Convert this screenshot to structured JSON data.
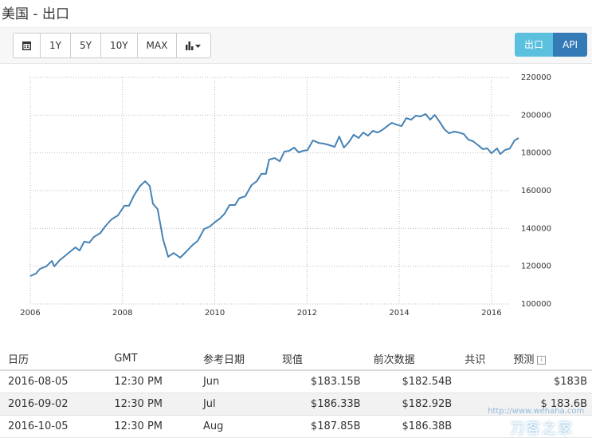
{
  "title": "美国 - 出口",
  "toolbar": {
    "buttons": [
      "1Y",
      "5Y",
      "10Y",
      "MAX"
    ],
    "tabs": [
      "出口",
      "API"
    ]
  },
  "chart_data": {
    "type": "line",
    "color": "#4682b4",
    "x": [
      2006.0,
      2006.12,
      2006.21,
      2006.35,
      2006.47,
      2006.52,
      2006.64,
      2006.81,
      2006.98,
      2007.07,
      2007.17,
      2007.28,
      2007.38,
      2007.52,
      2007.62,
      2007.76,
      2007.9,
      2008.04,
      2008.14,
      2008.25,
      2008.38,
      2008.49,
      2008.59,
      2008.66,
      2008.76,
      2008.88,
      2008.99,
      2009.11,
      2009.25,
      2009.39,
      2009.52,
      2009.63,
      2009.77,
      2009.89,
      2010.01,
      2010.11,
      2010.21,
      2010.32,
      2010.44,
      2010.53,
      2010.66,
      2010.8,
      2010.91,
      2011.01,
      2011.11,
      2011.18,
      2011.3,
      2011.41,
      2011.51,
      2011.61,
      2011.72,
      2011.82,
      2011.91,
      2012.01,
      2012.13,
      2012.25,
      2012.37,
      2012.49,
      2012.6,
      2012.7,
      2012.8,
      2012.91,
      2013.01,
      2013.12,
      2013.22,
      2013.32,
      2013.43,
      2013.53,
      2013.63,
      2013.74,
      2013.84,
      2013.94,
      2014.05,
      2014.15,
      2014.26,
      2014.36,
      2014.46,
      2014.57,
      2014.67,
      2014.77,
      2014.88,
      2014.98,
      2015.08,
      2015.19,
      2015.29,
      2015.4,
      2015.5,
      2015.6,
      2015.71,
      2015.81,
      2015.91,
      2016.0,
      2016.12,
      2016.19,
      2016.29,
      2016.4,
      2016.5,
      2016.59
    ],
    "values": [
      114800,
      116000,
      118600,
      120000,
      122800,
      119900,
      123200,
      126600,
      130000,
      128300,
      133000,
      132500,
      135500,
      137600,
      141000,
      144800,
      146900,
      152000,
      152000,
      157500,
      162500,
      165000,
      162500,
      153000,
      150300,
      134200,
      125000,
      127000,
      124500,
      127900,
      131300,
      133400,
      139700,
      141000,
      143500,
      145200,
      147700,
      152400,
      152400,
      156000,
      157000,
      163000,
      165000,
      168900,
      168900,
      176500,
      177300,
      175600,
      180700,
      181100,
      182800,
      180300,
      181100,
      181500,
      186600,
      185300,
      184900,
      184100,
      183200,
      188700,
      182800,
      185800,
      189600,
      187900,
      190800,
      189100,
      191700,
      190800,
      192100,
      194200,
      195900,
      195000,
      194200,
      198400,
      197600,
      199700,
      199300,
      200600,
      197600,
      200100,
      196300,
      192500,
      190400,
      191300,
      190800,
      190000,
      187000,
      186200,
      184100,
      182000,
      182400,
      179800,
      182400,
      179400,
      181500,
      182400,
      186600,
      187900
    ],
    "xlim": [
      2006,
      2016.59
    ],
    "xticks": [
      2006,
      2008,
      2010,
      2012,
      2014,
      2016
    ],
    "ylim": [
      100000,
      220000
    ],
    "yticks": [
      100000,
      120000,
      140000,
      160000,
      180000,
      200000,
      220000
    ],
    "grid": true
  },
  "table": {
    "headers": [
      "日历",
      "GMT",
      "参考日期",
      "现值",
      "前次数据",
      "共识",
      "预测"
    ],
    "rows": [
      [
        "2016-08-05",
        "12:30 PM",
        "Jun",
        "$183.15B",
        "$182.54B",
        null,
        "$183B"
      ],
      [
        "2016-09-02",
        "12:30 PM",
        "Jul",
        "$186.33B",
        "$182.92B",
        null,
        "$ 183.6B"
      ],
      [
        "2016-10-05",
        "12:30 PM",
        "Aug",
        "$187.85B",
        "$186.38B",
        null,
        null
      ]
    ]
  },
  "watermark": {
    "url": "http://www.wehaha.com",
    "name": "刀客之家"
  }
}
